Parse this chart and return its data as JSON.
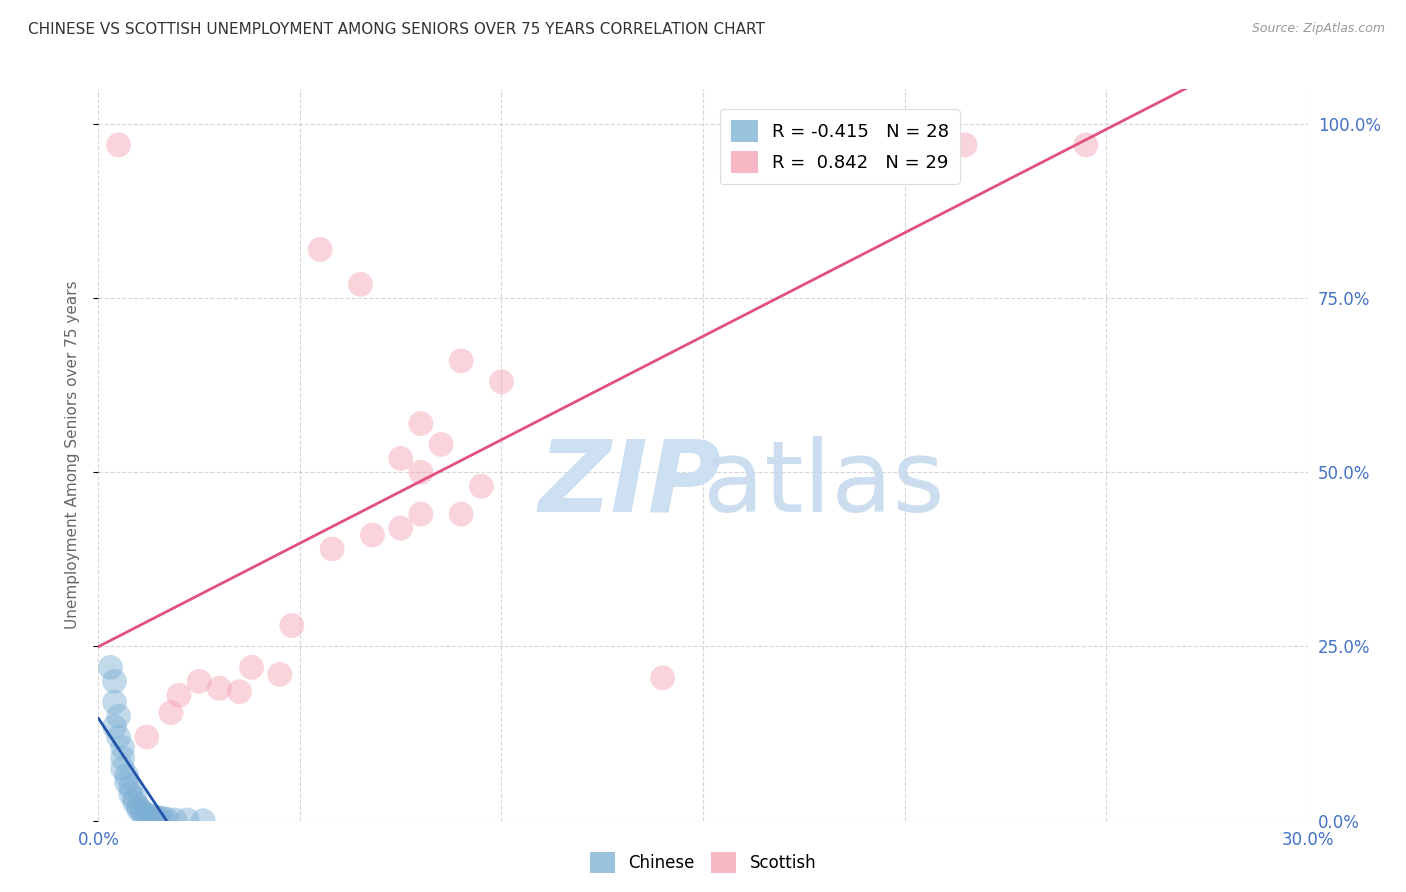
{
  "title": "CHINESE VS SCOTTISH UNEMPLOYMENT AMONG SENIORS OVER 75 YEARS CORRELATION CHART",
  "source": "Source: ZipAtlas.com",
  "ylabel": "Unemployment Among Seniors over 75 years",
  "title_color": "#333333",
  "source_color": "#999999",
  "axis_label_color": "#666666",
  "tick_color": "#4472c4",
  "background_color": "#ffffff",
  "grid_color": "#cccccc",
  "xlim": [
    0.0,
    0.3
  ],
  "ylim": [
    0.0,
    1.05
  ],
  "xticks": [
    0.0,
    0.05,
    0.1,
    0.15,
    0.2,
    0.25,
    0.3
  ],
  "yticks": [
    0.0,
    0.25,
    0.5,
    0.75,
    1.0
  ],
  "ytick_labels": [
    "0.0%",
    "25.0%",
    "50.0%",
    "75.0%",
    "100.0%"
  ],
  "chinese_scatter": [
    [
      0.003,
      0.22
    ],
    [
      0.004,
      0.2
    ],
    [
      0.004,
      0.17
    ],
    [
      0.005,
      0.15
    ],
    [
      0.004,
      0.135
    ],
    [
      0.005,
      0.12
    ],
    [
      0.006,
      0.105
    ],
    [
      0.006,
      0.09
    ],
    [
      0.006,
      0.075
    ],
    [
      0.007,
      0.065
    ],
    [
      0.007,
      0.055
    ],
    [
      0.008,
      0.048
    ],
    [
      0.008,
      0.038
    ],
    [
      0.009,
      0.032
    ],
    [
      0.009,
      0.026
    ],
    [
      0.01,
      0.02
    ],
    [
      0.01,
      0.016
    ],
    [
      0.011,
      0.013
    ],
    [
      0.011,
      0.01
    ],
    [
      0.012,
      0.008
    ],
    [
      0.013,
      0.006
    ],
    [
      0.014,
      0.005
    ],
    [
      0.015,
      0.004
    ],
    [
      0.016,
      0.003
    ],
    [
      0.017,
      0.002
    ],
    [
      0.019,
      0.001
    ],
    [
      0.022,
      0.001
    ],
    [
      0.026,
      0.0
    ]
  ],
  "scottish_scatter": [
    [
      0.005,
      0.97
    ],
    [
      0.19,
      0.97
    ],
    [
      0.215,
      0.97
    ],
    [
      0.245,
      0.97
    ],
    [
      0.055,
      0.82
    ],
    [
      0.065,
      0.77
    ],
    [
      0.09,
      0.66
    ],
    [
      0.1,
      0.63
    ],
    [
      0.08,
      0.57
    ],
    [
      0.085,
      0.54
    ],
    [
      0.075,
      0.52
    ],
    [
      0.08,
      0.5
    ],
    [
      0.095,
      0.48
    ],
    [
      0.09,
      0.44
    ],
    [
      0.08,
      0.44
    ],
    [
      0.075,
      0.42
    ],
    [
      0.068,
      0.41
    ],
    [
      0.058,
      0.39
    ],
    [
      0.048,
      0.28
    ],
    [
      0.038,
      0.22
    ],
    [
      0.045,
      0.21
    ],
    [
      0.025,
      0.2
    ],
    [
      0.03,
      0.19
    ],
    [
      0.035,
      0.185
    ],
    [
      0.02,
      0.18
    ],
    [
      0.14,
      0.205
    ],
    [
      0.018,
      0.155
    ],
    [
      0.012,
      0.12
    ]
  ],
  "chinese_color": "#7bafd4",
  "scottish_color": "#f4a0b0",
  "chinese_line_color": "#2255aa",
  "scottish_line_color": "#e05080",
  "scatter_size": 320,
  "scatter_alpha": 0.45,
  "legend_r_color": "#4472c4"
}
